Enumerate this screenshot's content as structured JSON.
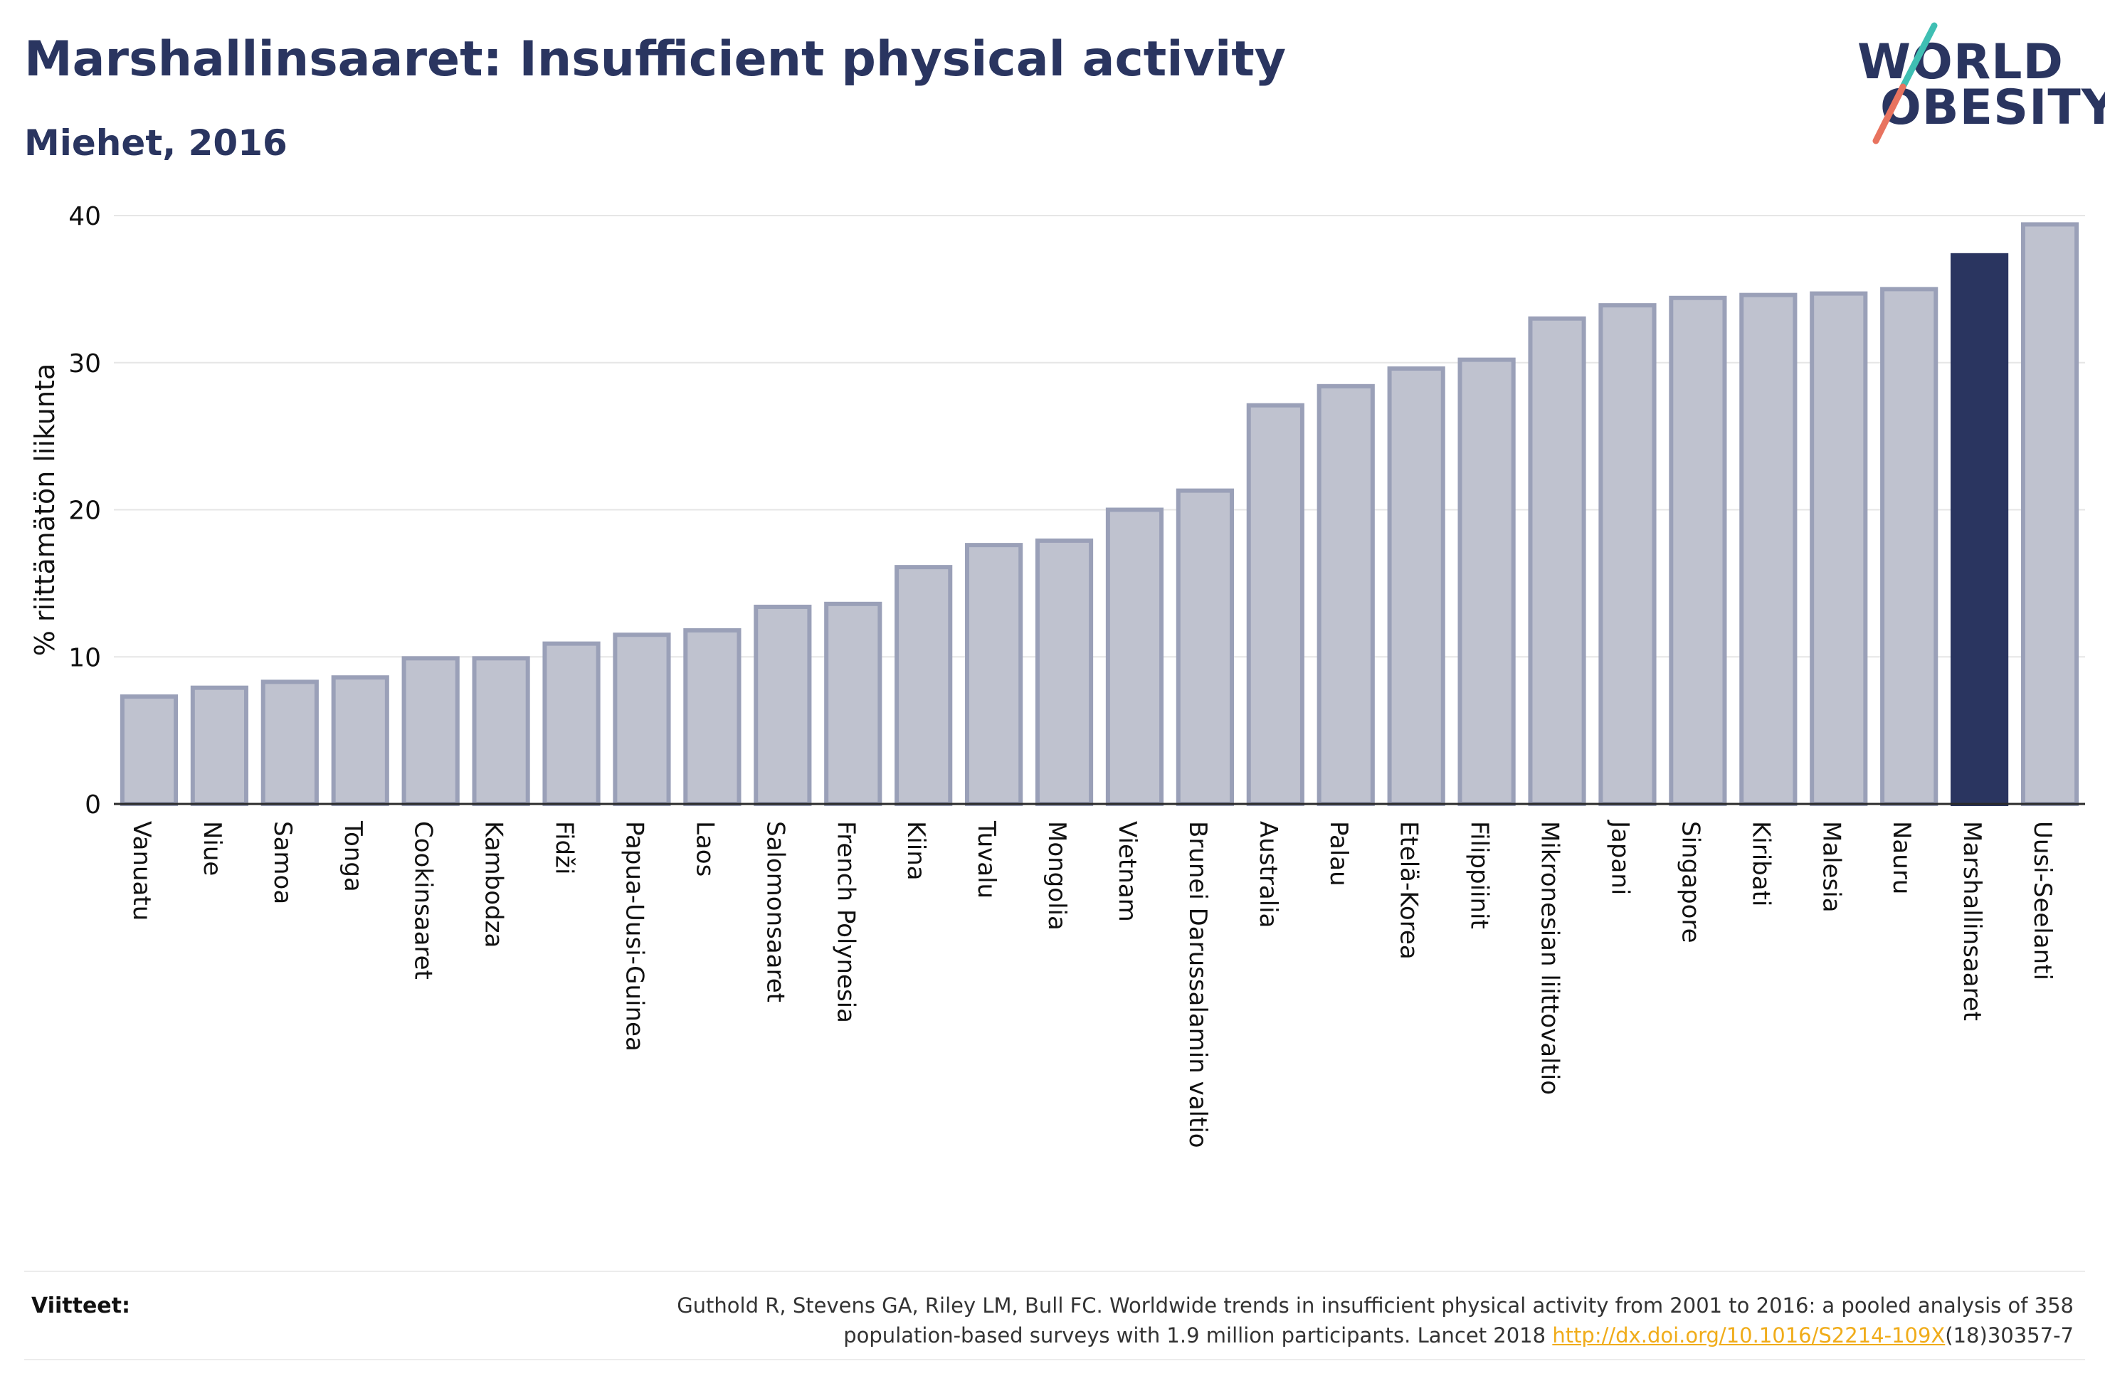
{
  "header": {
    "title": "Marshallinsaaret: Insufficient physical activity",
    "subtitle": "Miehet, 2016"
  },
  "logo": {
    "line1": "WORLD",
    "line2": "OBESITY"
  },
  "colors": {
    "bar_fill": "#bfc2cf",
    "bar_stroke": "#9aa0b8",
    "highlight": "#2a3560",
    "gridline": "#e6e6e6",
    "logo_teal": "#3fbfb3",
    "logo_coral": "#e8735f",
    "link": "#f0ac1a"
  },
  "chart_data": {
    "type": "bar",
    "title": "Marshallinsaaret: Insufficient physical activity",
    "subtitle": "Miehet, 2016",
    "xlabel": "",
    "ylabel": "% riittämätön liikunta",
    "ylim": [
      0,
      40
    ],
    "yticks": [
      0,
      10,
      20,
      30,
      40
    ],
    "grid": true,
    "highlight_category": "Marshallinsaaret",
    "categories": [
      "Vanuatu",
      "Niue",
      "Samoa",
      "Tonga",
      "Cookinsaaret",
      "Kambodza",
      "Fidži",
      "Papua-Uusi-Guinea",
      "Laos",
      "Salomonsaaret",
      "French Polynesia",
      "Kiina",
      "Tuvalu",
      "Mongolia",
      "Vietnam",
      "Brunei Darussalamin valtio",
      "Australia",
      "Palau",
      "Etelä-Korea",
      "Filippiinit",
      "Mikronesian liittovaltio",
      "Japani",
      "Singapore",
      "Kiribati",
      "Malesia",
      "Nauru",
      "Marshallinsaaret",
      "Uusi-Seelanti"
    ],
    "values": [
      7.3,
      7.9,
      8.3,
      8.6,
      9.9,
      9.9,
      10.9,
      11.5,
      11.8,
      13.4,
      13.6,
      16.1,
      17.6,
      17.9,
      20.0,
      21.3,
      27.1,
      28.4,
      29.6,
      30.2,
      33.0,
      33.9,
      34.4,
      34.6,
      34.7,
      35.0,
      37.3,
      39.4
    ]
  },
  "references": {
    "label": "Viitteet:",
    "line1": "Guthold R, Stevens GA, Riley LM, Bull FC. Worldwide trends in insufficient physical activity from 2001 to 2016: a pooled analysis of 358",
    "line2_prefix": "population-based surveys with 1.9 million participants. Lancet 2018 ",
    "link": "http://dx.doi.org/10.1016/S2214-109X",
    "line2_suffix": "(18)30357-7"
  }
}
